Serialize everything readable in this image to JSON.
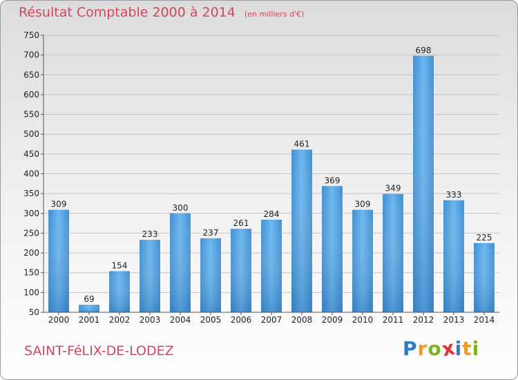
{
  "chart_data": {
    "type": "bar",
    "title": "Résultat Comptable 2000 à 2014",
    "subtitle": "(en milliers d'€)",
    "categories": [
      "2000",
      "2001",
      "2002",
      "2003",
      "2004",
      "2005",
      "2006",
      "2007",
      "2008",
      "2009",
      "2010",
      "2011",
      "2012",
      "2013",
      "2014"
    ],
    "values": [
      309,
      69,
      154,
      233,
      300,
      237,
      261,
      284,
      461,
      369,
      309,
      349,
      698,
      333,
      225
    ],
    "ylim": [
      50,
      750
    ],
    "yticks": [
      50,
      100,
      150,
      200,
      250,
      300,
      350,
      400,
      450,
      500,
      550,
      600,
      650,
      700,
      750
    ],
    "grid": true,
    "bar_color": "#4a9de0"
  },
  "footer": {
    "place": "SAINT-FéLIX-DE-LODEZ",
    "logo_letters": [
      "P",
      "r",
      "o",
      "x",
      "i",
      "t",
      "i"
    ],
    "logo_colors": [
      "#2e7cc4",
      "#f39a1e",
      "#7ab51d",
      "#e0303a",
      "#2e7cc4",
      "#f39a1e",
      "#7ab51d"
    ]
  }
}
